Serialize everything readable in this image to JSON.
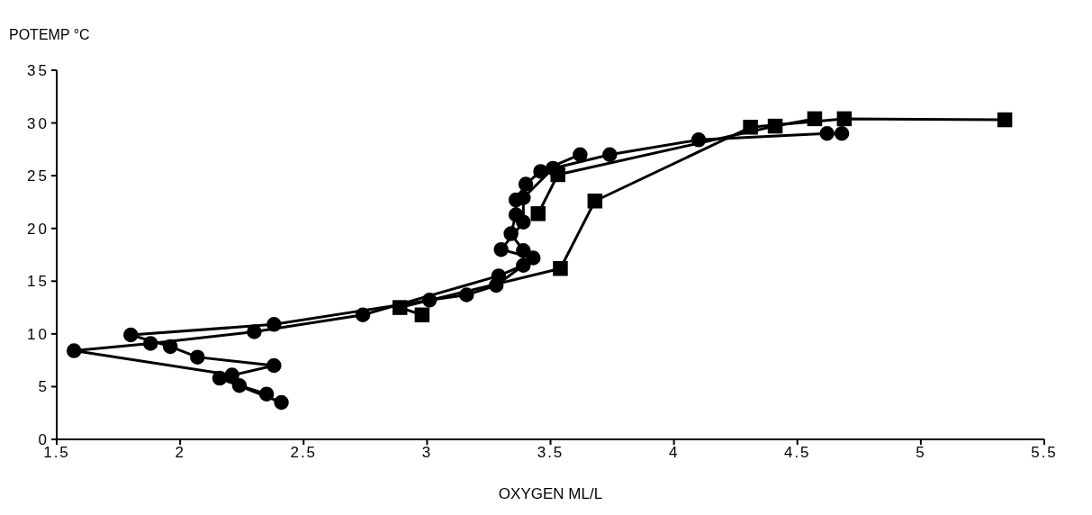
{
  "chart_data": {
    "type": "line",
    "xlabel": "OXYGEN ML/L",
    "ylabel": "POTEMP °C",
    "xlim": [
      1.5,
      5.5
    ],
    "xticks": [
      1.5,
      2,
      2.5,
      3,
      3.5,
      4,
      4.5,
      5,
      5.5
    ],
    "ylim": [
      0,
      35
    ],
    "yticks": [
      0,
      5,
      10,
      15,
      20,
      25,
      30,
      35
    ],
    "grid": false,
    "legend": false,
    "line_style": "solid",
    "series": [
      {
        "color": "#000000",
        "marker": "circle",
        "x": [
          3.62,
          3.46,
          3.4,
          3.36,
          3.36,
          3.34,
          3.39,
          3.39,
          3.29,
          2.74,
          2.3,
          1.88,
          1.57,
          2.21,
          2.24,
          2.35
        ],
        "values": [
          27.0,
          25.4,
          24.2,
          22.7,
          21.3,
          19.5,
          17.9,
          16.5,
          15.5,
          11.8,
          10.2,
          9.1,
          8.4,
          6.1,
          5.1,
          4.3
        ]
      },
      {
        "color": "#000000",
        "marker": "circle",
        "x": [
          4.68,
          4.62,
          4.1,
          3.74,
          3.51,
          3.39,
          3.39,
          3.3,
          3.43,
          3.28,
          3.16,
          3.01,
          2.38,
          1.8,
          1.96,
          2.07,
          2.38,
          2.16,
          2.41
        ],
        "values": [
          29.0,
          29.0,
          28.4,
          27.0,
          25.7,
          22.9,
          20.6,
          18.0,
          17.2,
          14.6,
          13.7,
          13.2,
          10.9,
          9.9,
          8.8,
          7.8,
          7.0,
          5.8,
          3.5
        ]
      },
      {
        "color": "#000000",
        "marker": "square",
        "x": [
          4.57,
          4.41,
          3.53,
          3.45
        ],
        "values": [
          30.4,
          29.7,
          25.1,
          21.4
        ]
      },
      {
        "color": "#000000",
        "marker": "square",
        "x": [
          5.34,
          4.69,
          4.31,
          3.68,
          3.54,
          2.89,
          2.98
        ],
        "values": [
          30.3,
          30.4,
          29.6,
          22.6,
          16.2,
          12.5,
          11.8
        ]
      }
    ]
  }
}
